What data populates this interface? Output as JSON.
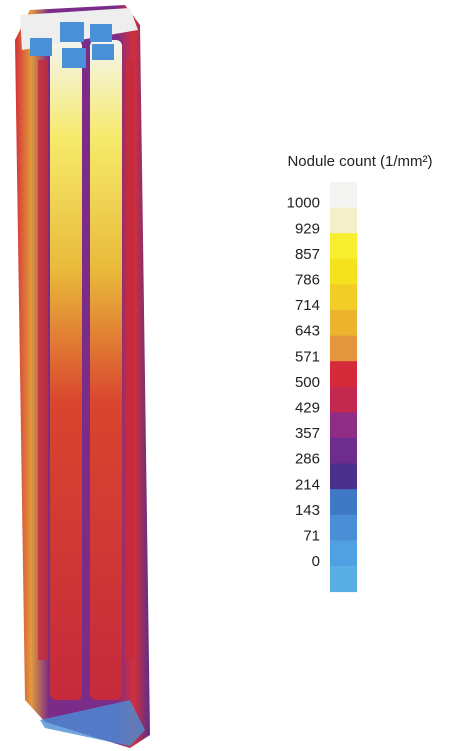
{
  "legend": {
    "title": "Nodule count (1/mm²)",
    "ticks": [
      "1000",
      "929",
      "857",
      "786",
      "714",
      "643",
      "571",
      "500",
      "429",
      "357",
      "286",
      "214",
      "143",
      "71",
      "0"
    ],
    "colors": [
      "#f4f4f2",
      "#f4efc8",
      "#f7ee2e",
      "#f5e21e",
      "#f2cd26",
      "#ecb42c",
      "#e3963b",
      "#d42a3a",
      "#c3284f",
      "#8f2c84",
      "#6c2d8c",
      "#4a2f8b",
      "#3f79c5",
      "#4a8fd6",
      "#50a1e1",
      "#5aaee6"
    ]
  }
}
